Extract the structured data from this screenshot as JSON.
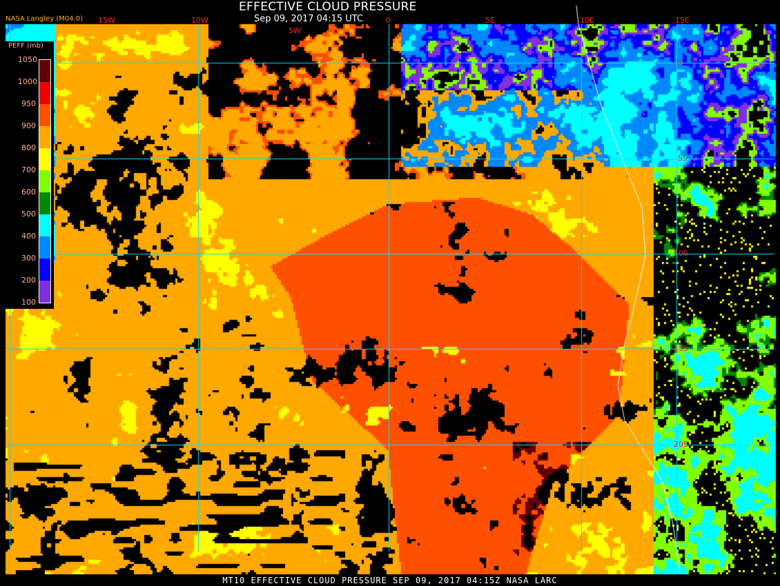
{
  "header": {
    "title": "EFFECTIVE CLOUD PRESSURE",
    "subtitle": "Sep 09, 2017 04:15 UTC",
    "credit": "NASA Langley (M04.0)"
  },
  "footer": "MT10  EFFECTIVE CLOUD PRESSURE   SEP 09, 2017 04:15Z   NASA LARC",
  "grid": {
    "longitude_labels": [
      "15W",
      "10W",
      "5W",
      "0",
      "5E",
      "10E",
      "15E"
    ],
    "latitude_labels": [
      "0",
      "5S",
      "10S",
      "15S",
      "20S"
    ],
    "line_color": "#00e0ff",
    "label_color": "#ff2020"
  },
  "legend": {
    "title": "PEFF (mb)",
    "ticks": [
      "100",
      "200",
      "300",
      "400",
      "500",
      "600",
      "700",
      "800",
      "900",
      "950",
      "1000",
      "1050"
    ],
    "colors": [
      "#8030e0",
      "#0000ff",
      "#0088ff",
      "#00ffff",
      "#008800",
      "#80ff00",
      "#ffff00",
      "#ffa800",
      "#ff5000",
      "#f00000",
      "#600000"
    ]
  },
  "map": {
    "no_cloud_color": "#000000",
    "coastline_color": "#ffffff"
  }
}
